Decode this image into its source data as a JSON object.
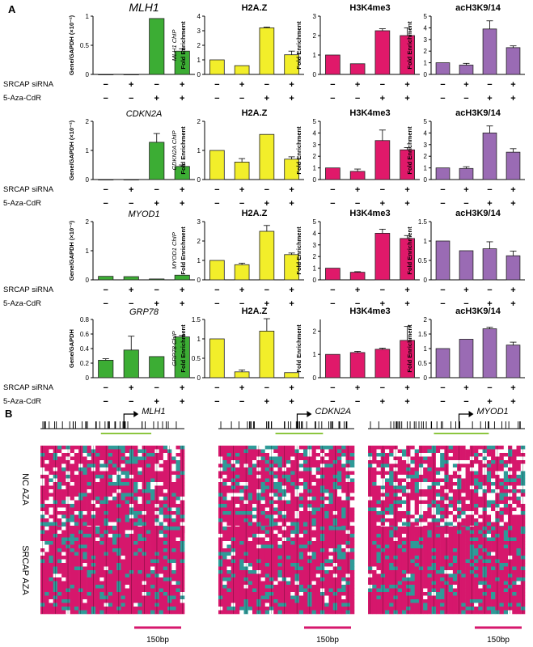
{
  "panel_labels": [
    "A",
    "B"
  ],
  "row_labels": {
    "srcap": "SRCAP siRNA",
    "aza": "5-Aza-CdR"
  },
  "treatments": {
    "srcap": [
      "−",
      "+",
      "−",
      "+"
    ],
    "aza": [
      "−",
      "−",
      "+",
      "+"
    ]
  },
  "colors": {
    "expr": "#3cad34",
    "h2az": "#f2ee2a",
    "h3k4": "#e0196a",
    "ac": "#9a6bb4",
    "methylated": "#d6176c",
    "unmethylated": "#2f9a98",
    "cpg_line": "#8cc63f",
    "bar_edge": "#222222"
  },
  "chart_data": [
    {
      "type": "bar",
      "gene": "MLH1",
      "title": "",
      "gene_label": "MLH1",
      "ylabel": "Gene/GAPDH (×10⁻²)",
      "ylim": [
        0,
        1
      ],
      "yticks": [
        "0",
        "0.5",
        "1"
      ],
      "values": [
        0.0,
        0.0,
        0.96,
        0.4
      ],
      "errors": [
        0,
        0,
        0,
        0.04
      ],
      "color_key": "expr"
    },
    {
      "type": "bar",
      "gene": "MLH1",
      "title": "H2A.Z",
      "ylabel": "Fold Enrichment",
      "ylabel_prefix": "MLH1 ChIP",
      "ylim": [
        0,
        4
      ],
      "yticks": [
        "0",
        "1",
        "2",
        "3",
        "4"
      ],
      "values": [
        1.0,
        0.6,
        3.2,
        1.35
      ],
      "errors": [
        0,
        0,
        0.05,
        0.25
      ],
      "color_key": "h2az"
    },
    {
      "type": "bar",
      "gene": "MLH1",
      "title": "H3K4me3",
      "ylabel": "Fold Enrichment",
      "ylim": [
        0,
        3
      ],
      "yticks": [
        "0",
        "1",
        "2",
        "3"
      ],
      "values": [
        1.0,
        0.55,
        2.25,
        2.0
      ],
      "errors": [
        0,
        0,
        0.1,
        0.4
      ],
      "color_key": "h3k4"
    },
    {
      "type": "bar",
      "gene": "MLH1",
      "title": "acH3K9/14",
      "ylabel": "Fold Enrichment",
      "ylim": [
        0,
        5
      ],
      "yticks": [
        "0",
        "1",
        "2",
        "3",
        "4",
        "5"
      ],
      "values": [
        1.0,
        0.8,
        3.9,
        2.3
      ],
      "errors": [
        0,
        0.15,
        0.7,
        0.15
      ],
      "color_key": "ac"
    },
    {
      "type": "bar",
      "gene": "CDKN2A",
      "title": "",
      "gene_label": "CDKN2A",
      "ylabel": "Gene/GAPDH (×10⁻²)",
      "ylim": [
        0,
        2
      ],
      "yticks": [
        "0",
        "1",
        "2"
      ],
      "values": [
        0.0,
        0.0,
        1.28,
        0.45
      ],
      "errors": [
        0,
        0,
        0.3,
        0.05
      ],
      "color_key": "expr"
    },
    {
      "type": "bar",
      "gene": "CDKN2A",
      "title": "H2A.Z",
      "ylabel": "Fold Enrichment",
      "ylabel_prefix": "CDKN2A ChIP",
      "ylim": [
        0,
        2
      ],
      "yticks": [
        "0",
        "1",
        "2"
      ],
      "values": [
        1.0,
        0.6,
        1.55,
        0.7
      ],
      "errors": [
        0,
        0.12,
        0,
        0.08
      ],
      "color_key": "h2az"
    },
    {
      "type": "bar",
      "gene": "CDKN2A",
      "title": "H3K4me3",
      "ylabel": "Fold Enrichment",
      "ylim": [
        0,
        5
      ],
      "yticks": [
        "0",
        "1",
        "2",
        "3",
        "4",
        "5"
      ],
      "values": [
        1.0,
        0.7,
        3.35,
        2.55
      ],
      "errors": [
        0,
        0.2,
        0.9,
        0.2
      ],
      "color_key": "h3k4"
    },
    {
      "type": "bar",
      "gene": "CDKN2A",
      "title": "acH3K9/14",
      "ylabel": "Fold Enrichment",
      "ylim": [
        0,
        5
      ],
      "yticks": [
        "0",
        "1",
        "2",
        "3",
        "4",
        "5"
      ],
      "values": [
        1.0,
        0.95,
        4.0,
        2.35
      ],
      "errors": [
        0,
        0.15,
        0.6,
        0.3
      ],
      "color_key": "ac"
    },
    {
      "type": "bar",
      "gene": "MYOD1",
      "title": "",
      "gene_label": "MYOD1",
      "ylabel": "Gene/GAPDH (×10⁻²)",
      "ylim": [
        0,
        2
      ],
      "yticks": [
        "0",
        "1",
        "2"
      ],
      "values": [
        0.12,
        0.11,
        0.03,
        0.16
      ],
      "errors": [
        0,
        0,
        0,
        0
      ],
      "color_key": "expr"
    },
    {
      "type": "bar",
      "gene": "MYOD1",
      "title": "H2A.Z",
      "ylabel": "Fold Enrichment",
      "ylabel_prefix": "MYOD1 ChIP",
      "ylim": [
        0,
        3
      ],
      "yticks": [
        "0",
        "1",
        "2",
        "3"
      ],
      "values": [
        1.0,
        0.78,
        2.5,
        1.3
      ],
      "errors": [
        0,
        0.08,
        0.3,
        0.08
      ],
      "color_key": "h2az"
    },
    {
      "type": "bar",
      "gene": "MYOD1",
      "title": "H3K4me3",
      "ylabel": "Fold Enrichment",
      "ylim": [
        0,
        5
      ],
      "yticks": [
        "0",
        "1",
        "2",
        "3",
        "4",
        "5"
      ],
      "values": [
        1.0,
        0.65,
        4.0,
        3.55
      ],
      "errors": [
        0,
        0.05,
        0.35,
        0.25
      ],
      "color_key": "h3k4"
    },
    {
      "type": "bar",
      "gene": "MYOD1",
      "title": "acH3K9/14",
      "ylabel": "Fold Enrichment",
      "ylim": [
        0,
        1.5
      ],
      "yticks": [
        "0",
        "0.5",
        "1",
        "1.5"
      ],
      "values": [
        1.0,
        0.75,
        0.8,
        0.62
      ],
      "errors": [
        0,
        0,
        0.18,
        0.12
      ],
      "color_key": "ac"
    },
    {
      "type": "bar",
      "gene": "GRP78",
      "title": "",
      "gene_label": "GRP78",
      "ylabel": "Gene/GAPDH",
      "ylim": [
        0,
        0.8
      ],
      "yticks": [
        "0",
        "0.2",
        "0.4",
        "0.6",
        "0.8"
      ],
      "values": [
        0.24,
        0.38,
        0.29,
        0.56
      ],
      "errors": [
        0.02,
        0.19,
        0,
        0.02
      ],
      "color_key": "expr"
    },
    {
      "type": "bar",
      "gene": "GRP78",
      "title": "H2A.Z",
      "ylabel": "Fold Enrichment",
      "ylabel_prefix": "GRP78 ChIP",
      "ylim": [
        0,
        1.5
      ],
      "yticks": [
        "0",
        "0.5",
        "1",
        "1.5"
      ],
      "values": [
        1.0,
        0.15,
        1.2,
        0.13
      ],
      "errors": [
        0,
        0.05,
        0.32,
        0
      ],
      "color_key": "h2az"
    },
    {
      "type": "bar",
      "gene": "GRP78",
      "title": "H3K4me3",
      "ylabel": "Fold Enrichment",
      "ylim": [
        0,
        2.5
      ],
      "yticks": [
        "0",
        "1",
        "2"
      ],
      "values": [
        1.0,
        1.08,
        1.22,
        1.6
      ],
      "errors": [
        0,
        0.05,
        0.05,
        0.6
      ],
      "color_key": "h3k4"
    },
    {
      "type": "bar",
      "gene": "GRP78",
      "title": "acH3K9/14",
      "ylabel": "Fold Enrichment",
      "ylim": [
        0,
        2
      ],
      "yticks": [
        "0",
        "0.5",
        "1",
        "1.5",
        "2"
      ],
      "values": [
        1.0,
        1.32,
        1.68,
        1.12
      ],
      "errors": [
        0,
        0,
        0.05,
        0.1
      ],
      "color_key": "ac"
    }
  ],
  "methylation": {
    "genes": [
      "MLH1",
      "CDKN2A",
      "MYOD1"
    ],
    "conditions": [
      "NC AZA",
      "SRCAP AZA"
    ],
    "scale_label": "150bp",
    "approx_methylated_fraction": {
      "MLH1": [
        0.65,
        0.75
      ],
      "CDKN2A": [
        0.65,
        0.72
      ],
      "MYOD1": [
        0.6,
        0.78
      ]
    }
  }
}
